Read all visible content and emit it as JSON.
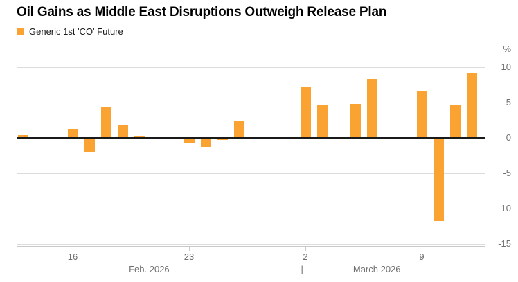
{
  "title": "Oil Gains as Middle East Disruptions Outweigh Release Plan",
  "legend": {
    "label": "Generic 1st 'CO' Future",
    "color": "#FAA332"
  },
  "chart_data": {
    "type": "bar",
    "title": "Oil Gains as Middle East Disruptions Outweigh Release Plan",
    "series_name": "Generic 1st 'CO' Future",
    "y_unit": "%",
    "ylim": [
      -15,
      10
    ],
    "y_ticks": [
      10,
      5,
      0,
      -5,
      -10,
      -15
    ],
    "grid": true,
    "legend_position": "top-left",
    "colors": {
      "bar": "#FAA332",
      "grid_line": "#dcdcdc",
      "zero_line": "#1a1a1a",
      "axis_line": "#c9c9c9",
      "tick_text": "#707070"
    },
    "x_axis": {
      "tick_labels": [
        {
          "label": "16",
          "day": 3
        },
        {
          "label": "23",
          "day": 10
        },
        {
          "label": "2",
          "day": 17
        },
        {
          "label": "9",
          "day": 24
        }
      ],
      "month_labels": [
        {
          "label": "Feb. 2026",
          "center_day": 7.6
        },
        {
          "label": "March 2026",
          "center_day": 21.3
        }
      ],
      "separator": {
        "label": "|",
        "day": 16.8
      }
    },
    "bars": [
      {
        "date": "Feb 13",
        "day": 0,
        "value": 0.4
      },
      {
        "date": "Feb 16",
        "day": 3,
        "value": 1.3
      },
      {
        "date": "Feb 17",
        "day": 4,
        "value": -1.9
      },
      {
        "date": "Feb 18",
        "day": 5,
        "value": 4.4
      },
      {
        "date": "Feb 19",
        "day": 6,
        "value": 1.8
      },
      {
        "date": "Feb 20",
        "day": 7,
        "value": 0.2
      },
      {
        "date": "Feb 23",
        "day": 10,
        "value": -0.6
      },
      {
        "date": "Feb 24",
        "day": 11,
        "value": -1.2
      },
      {
        "date": "Feb 25",
        "day": 12,
        "value": -0.2
      },
      {
        "date": "Feb 26",
        "day": 13,
        "value": 2.4
      },
      {
        "date": "March 2",
        "day": 17,
        "value": 7.2
      },
      {
        "date": "March 3",
        "day": 18,
        "value": 4.6
      },
      {
        "date": "March 5",
        "day": 20,
        "value": 4.8
      },
      {
        "date": "March 6",
        "day": 21,
        "value": 8.3
      },
      {
        "date": "March 9",
        "day": 24,
        "value": 6.6
      },
      {
        "date": "March 10",
        "day": 25,
        "value": -11.7
      },
      {
        "date": "March 11",
        "day": 26,
        "value": 4.6
      },
      {
        "date": "March 12",
        "day": 27,
        "value": 9.1
      }
    ]
  }
}
